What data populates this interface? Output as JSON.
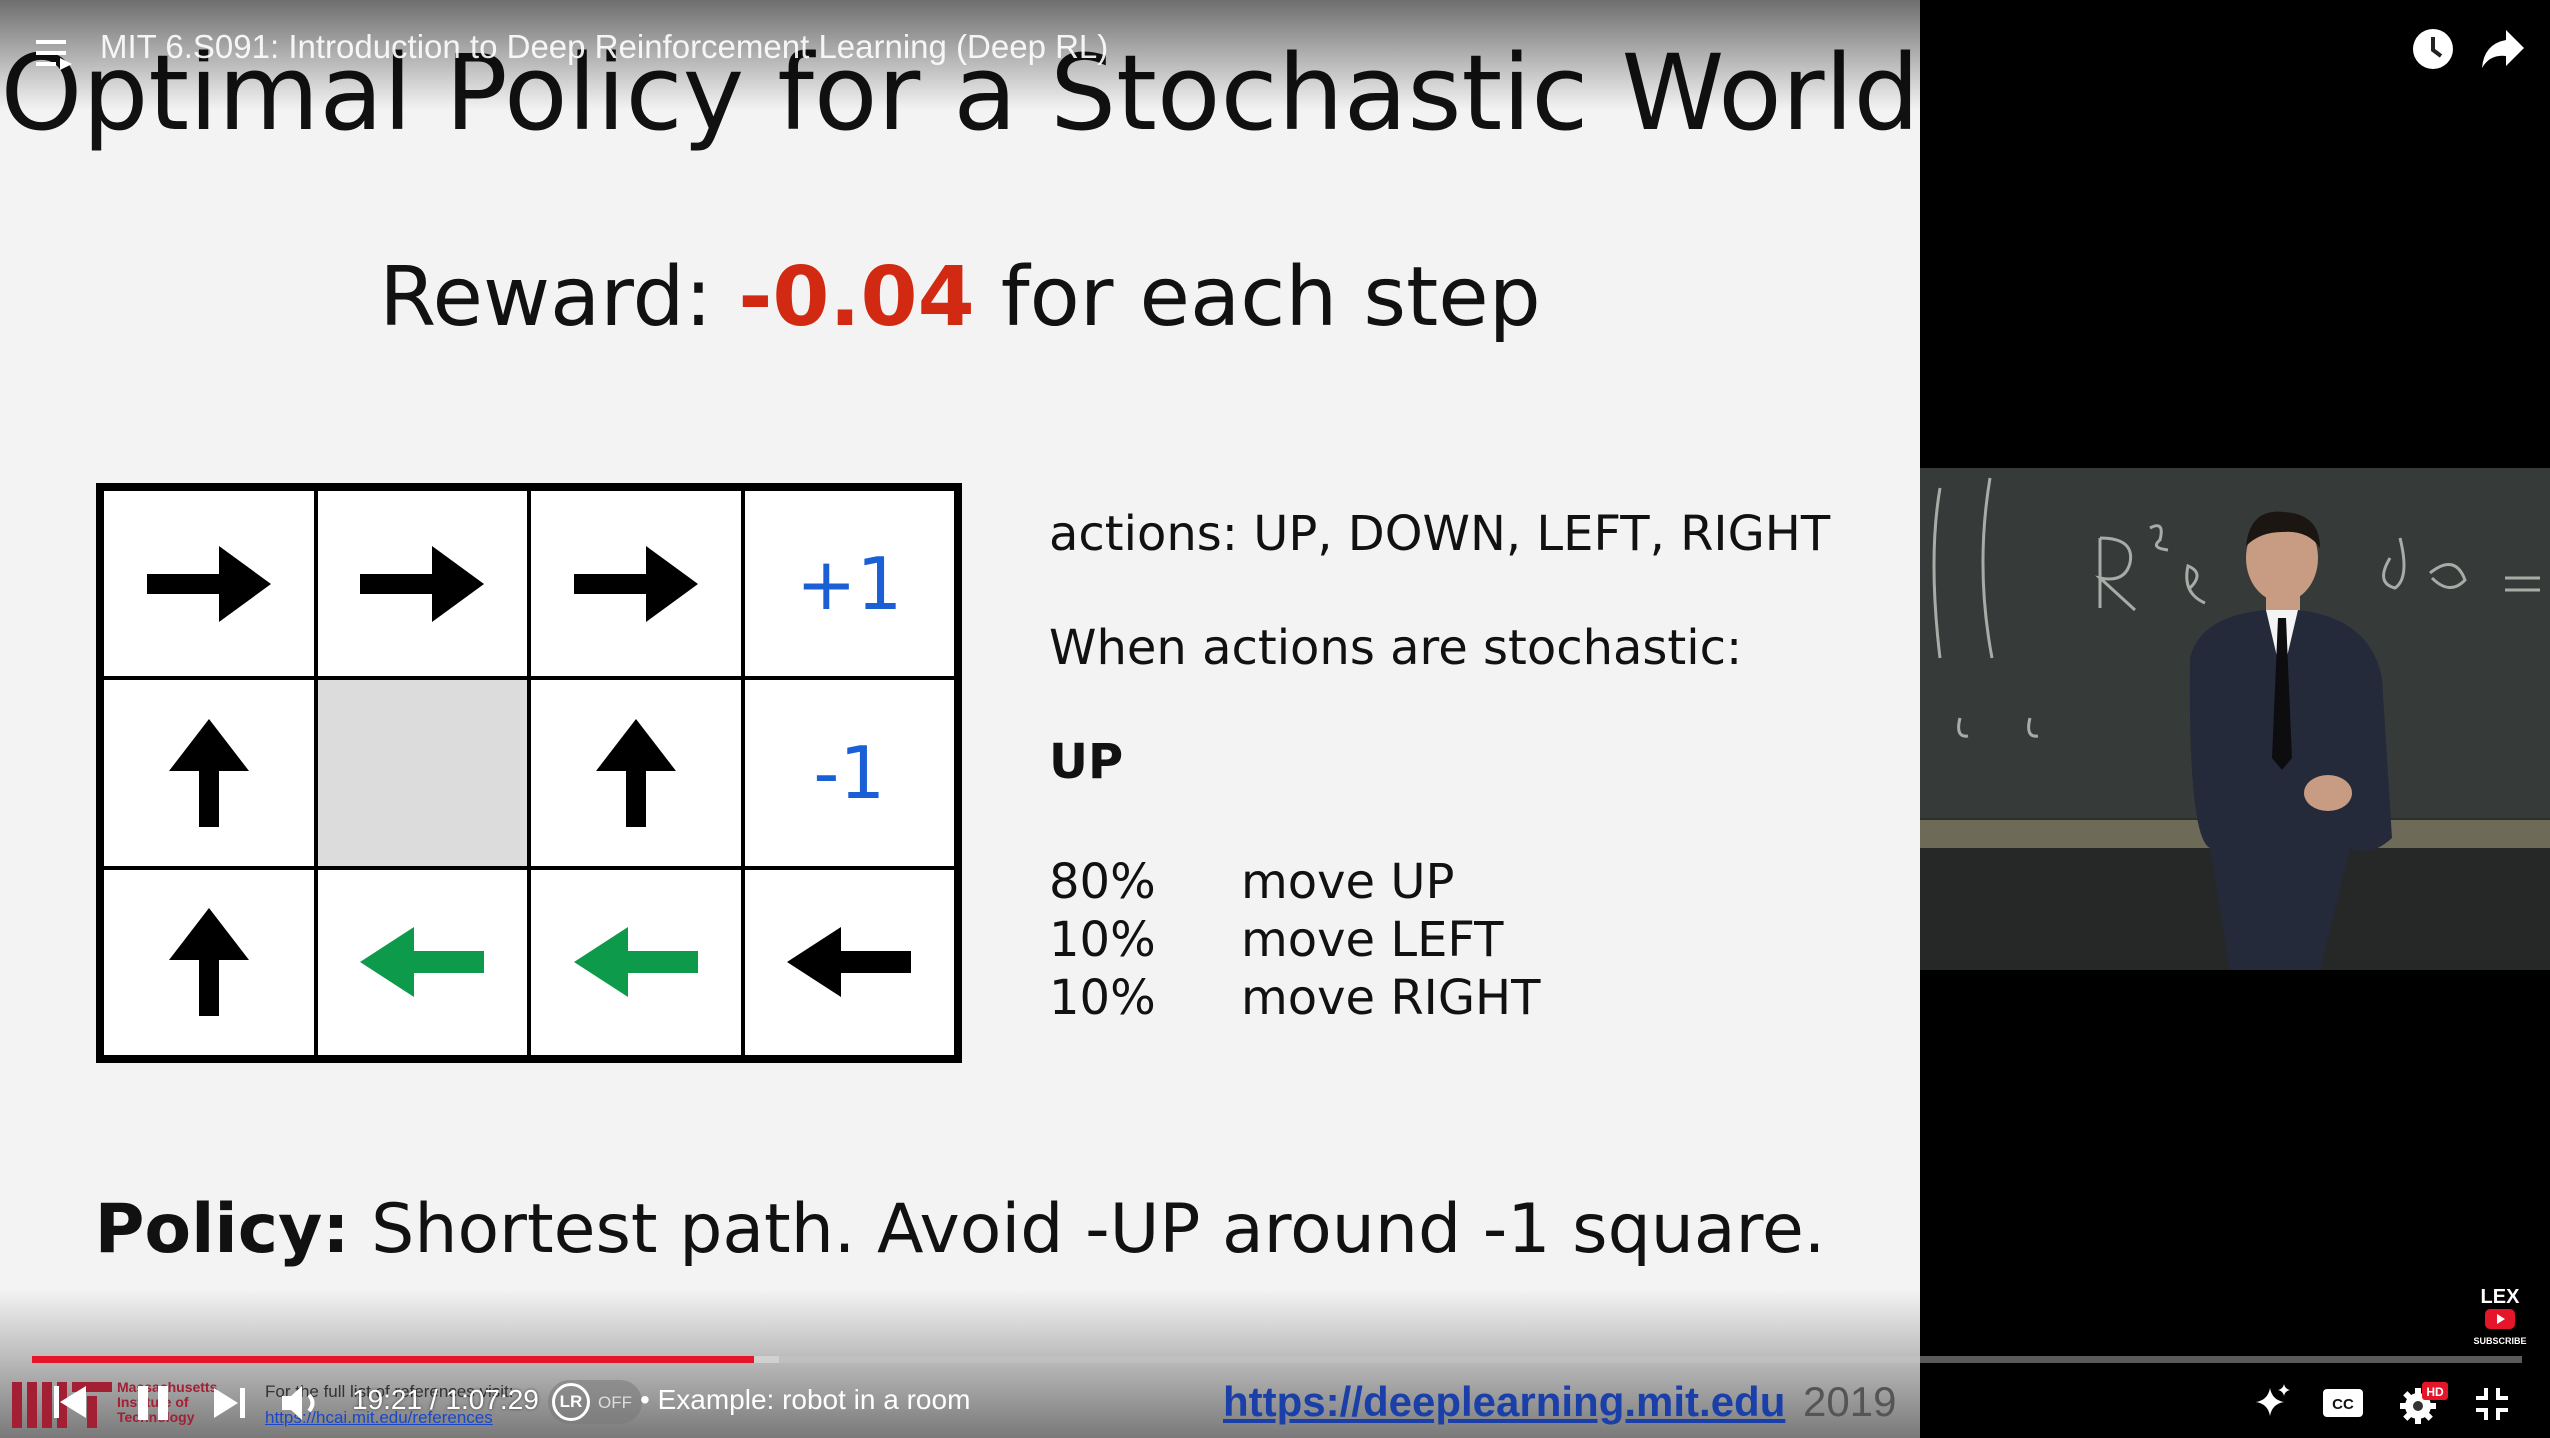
{
  "header": {
    "video_title": "MIT 6.S091: Introduction to Deep Reinforcement Learning (Deep RL)"
  },
  "slide": {
    "title": "Optimal Policy for a Stochastic World",
    "reward_prefix": "Reward: ",
    "reward_value": "-0.04",
    "reward_suffix": " for each step",
    "grid": {
      "terminal_plus": "+1",
      "terminal_minus": "-1"
    },
    "actions_line": "actions: UP, DOWN, LEFT, RIGHT",
    "stochastic_line": "When actions are stochastic:",
    "up_label": "UP",
    "probabilities": [
      {
        "pct": "80%",
        "move": "move UP"
      },
      {
        "pct": "10%",
        "move": "move LEFT"
      },
      {
        "pct": "10%",
        "move": "move RIGHT"
      }
    ],
    "policy_label": "Policy:",
    "policy_text": " Shortest path. Avoid -UP around -1 square.",
    "arrow_colors": {
      "black": "#000000",
      "green": "#0d9a4a"
    }
  },
  "footer": {
    "mit_name_lines": [
      "Massachusetts",
      "Institute of",
      "Technology"
    ],
    "refs_text": "For the full list of references visit:",
    "refs_link": "https://hcai.mit.edu/references",
    "url": "https://deeplearning.mit.edu",
    "year": "2019"
  },
  "player": {
    "time_current": "19:21",
    "time_separator": " / ",
    "time_total": "1:07:29",
    "chapter": "• Example: robot in a room",
    "lr_label": "LR",
    "lr_state": "OFF",
    "progress_played": 0.29,
    "progress_buffered": 0.3,
    "hd_badge": "HD",
    "cc_label": "CC",
    "accent": "#e5162a"
  },
  "channel_badge": {
    "name": "LEX",
    "subscribe": "SUBSCRIBE"
  },
  "icons": [
    "menu-icon",
    "watch-later-icon",
    "share-icon",
    "prev-icon",
    "pause-icon",
    "next-icon",
    "volume-icon",
    "sparkle-icon",
    "cc-icon",
    "settings-icon",
    "fullscreen-exit-icon"
  ]
}
